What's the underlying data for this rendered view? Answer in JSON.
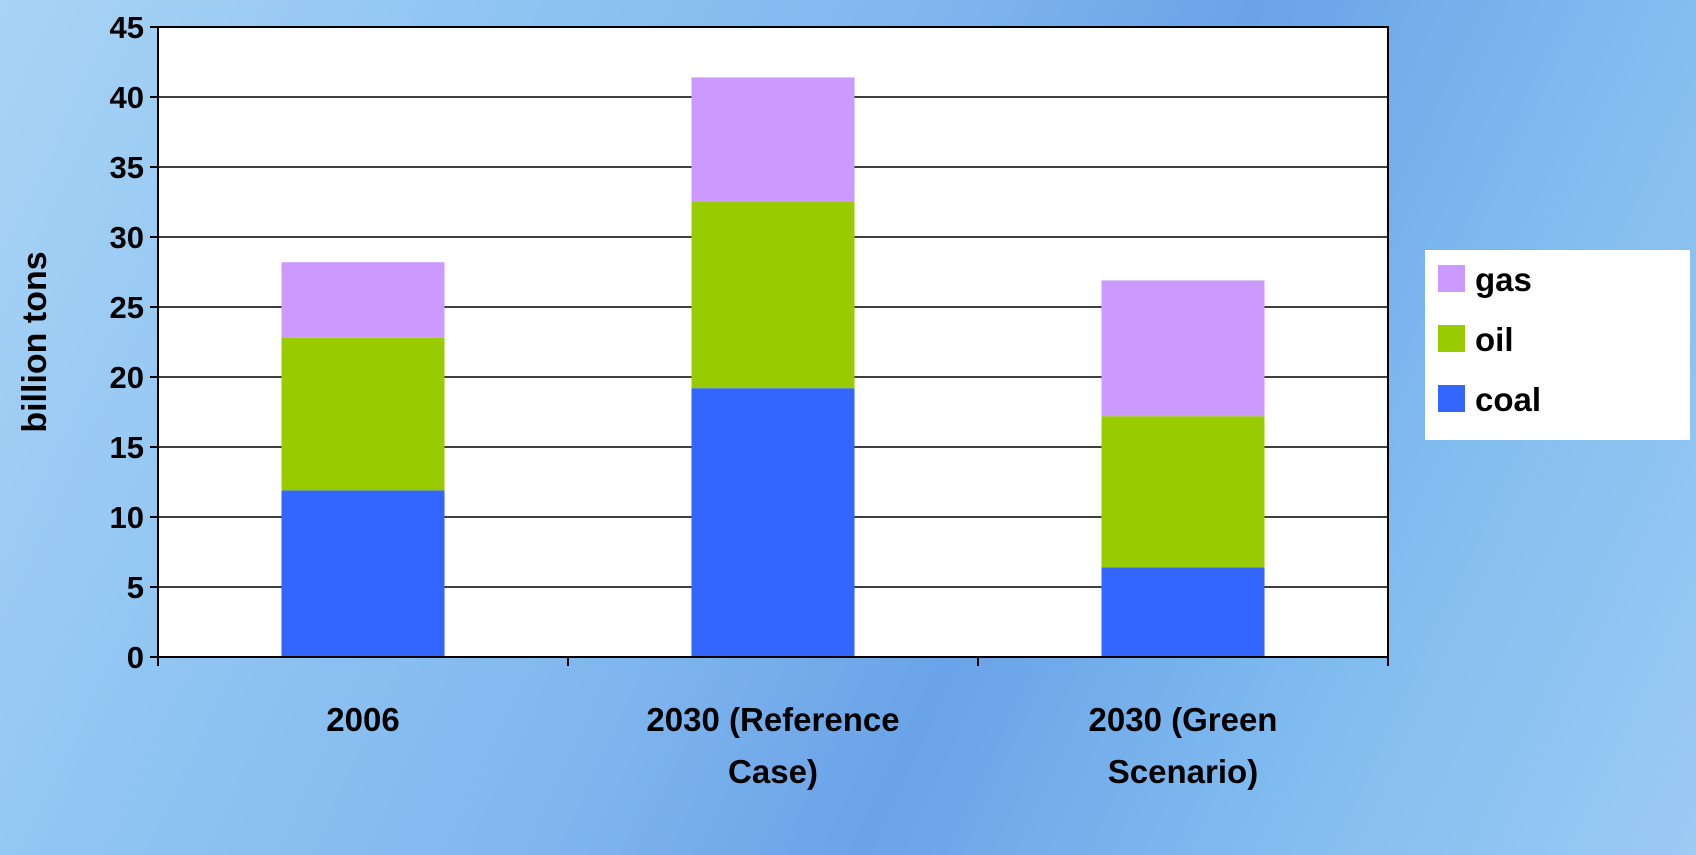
{
  "chart_data": {
    "type": "bar",
    "stacked": true,
    "categories": [
      "2006",
      "2030 (Reference Case)",
      "2030 (Green Scenario)"
    ],
    "category_label_lines": [
      [
        "2006"
      ],
      [
        "2030 (Reference",
        "Case)"
      ],
      [
        "2030 (Green",
        "Scenario)"
      ]
    ],
    "series": [
      {
        "name": "coal",
        "color": "#3366ff",
        "values": [
          11.9,
          19.2,
          6.4
        ]
      },
      {
        "name": "oil",
        "color": "#99cc00",
        "values": [
          10.9,
          13.3,
          10.8
        ]
      },
      {
        "name": "gas",
        "color": "#cc99ff",
        "values": [
          5.4,
          8.9,
          9.7
        ]
      }
    ],
    "ylabel": "billion tons",
    "xlabel": "",
    "title": "",
    "ylim": [
      0,
      45
    ],
    "yticks": [
      0,
      5,
      10,
      15,
      20,
      25,
      30,
      35,
      40,
      45
    ],
    "grid": true,
    "legend_position": "right",
    "legend_order": [
      "gas",
      "oil",
      "coal"
    ]
  }
}
